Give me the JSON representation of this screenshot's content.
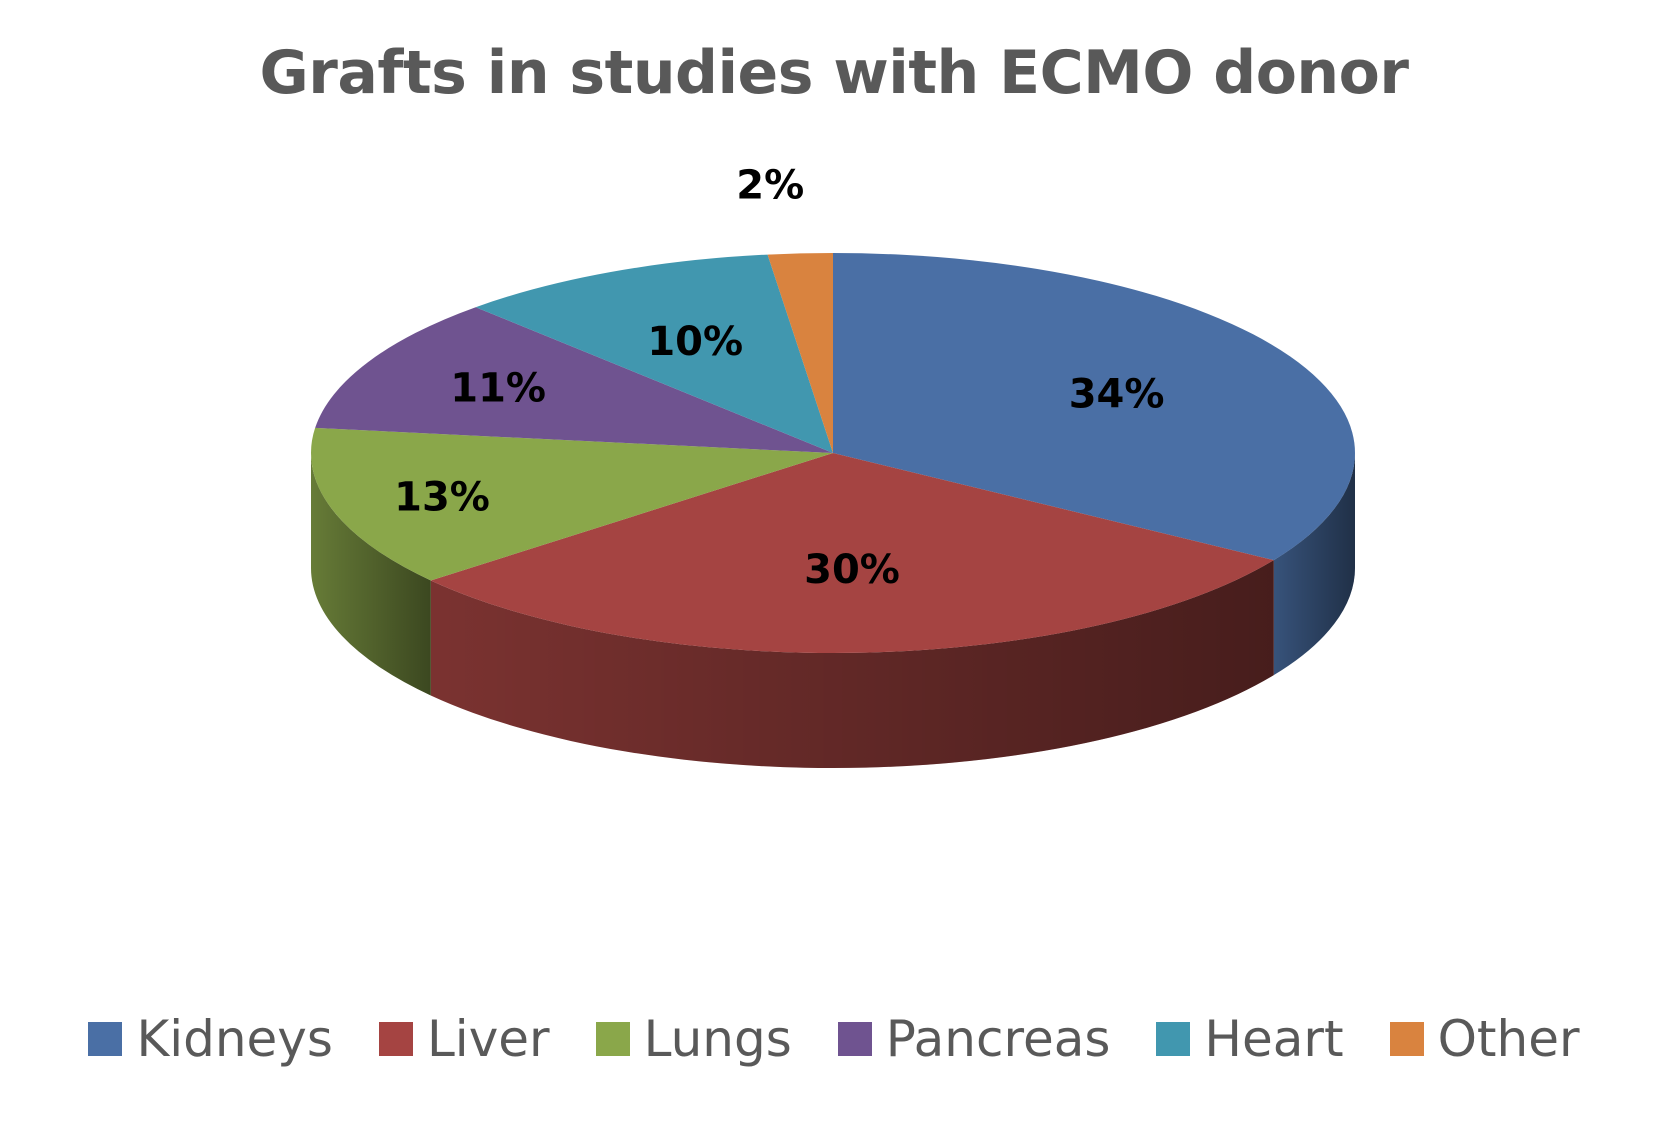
{
  "chart_data": {
    "type": "pie",
    "title": "Grafts in studies with ECMO donor",
    "categories": [
      "Kidneys",
      "Liver",
      "Lungs",
      "Pancreas",
      "Heart",
      "Other"
    ],
    "values": [
      34,
      30,
      13,
      11,
      10,
      2
    ],
    "data_labels": [
      "34%",
      "30%",
      "13%",
      "11%",
      "10%",
      "2%"
    ],
    "colors": [
      "#4A6FA5",
      "#A54442",
      "#8AA74A",
      "#6F5390",
      "#4197AF",
      "#D9833F"
    ],
    "style": "3d-tilted",
    "legend_position": "bottom"
  }
}
